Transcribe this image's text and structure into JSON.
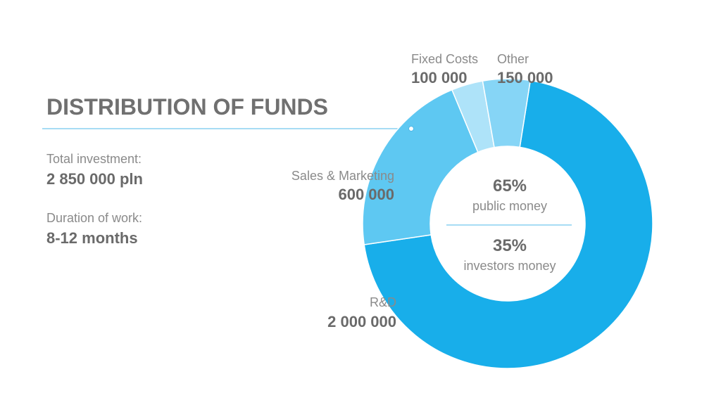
{
  "colors": {
    "rd": "#18aeea",
    "sales": "#5ec8f2",
    "fixed": "#aee3f9",
    "other": "#86d5f6",
    "accent_line": "#4db8e8"
  },
  "left_panel": {
    "title": "DISTRIBUTION OF FUNDS",
    "total_label": "Total investment:",
    "total_value": "2 850 000 pln",
    "duration_label": "Duration of work:",
    "duration_value": "8-12 months"
  },
  "center": {
    "public_pct": "65%",
    "public_label": "public money",
    "investors_pct": "35%",
    "investors_label": "investors money"
  },
  "chart_data": {
    "type": "pie",
    "series": [
      {
        "name": "R&D",
        "value": 2000000,
        "display": "2 000 000",
        "color_key": "rd"
      },
      {
        "name": "Sales & Marketing",
        "value": 600000,
        "display": "600 000",
        "color_key": "sales"
      },
      {
        "name": "Fixed Costs",
        "value": 100000,
        "display": "100 000",
        "color_key": "fixed"
      },
      {
        "name": "Other",
        "value": 150000,
        "display": "150 000",
        "color_key": "other"
      }
    ]
  }
}
